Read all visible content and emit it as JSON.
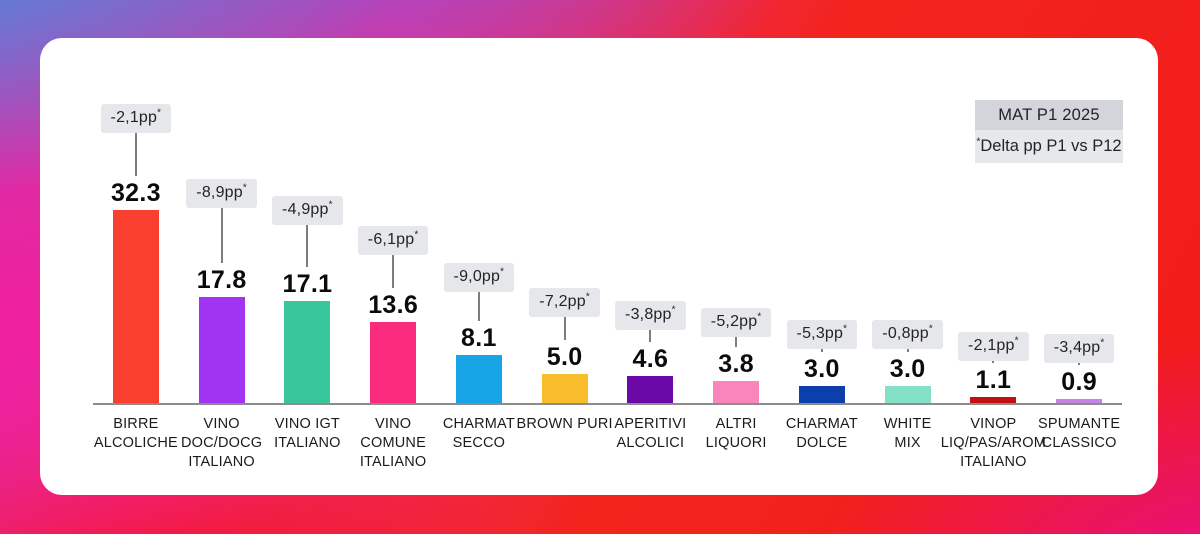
{
  "background": {
    "gradient_colors": [
      "#2f9fe9",
      "#944fd6",
      "#f61a9e",
      "#f31016",
      "#e30d9a",
      "#f2241c"
    ],
    "card_color": "#ffffff"
  },
  "legend": {
    "period_label": "MAT P1 2025",
    "note_asterisk": "*",
    "note_text": "Delta pp P1 vs P12",
    "period_bg": "#d3d5db",
    "note_bg": "#e7e8ec"
  },
  "chart_data": {
    "type": "bar",
    "title": "",
    "xlabel": "",
    "ylabel": "",
    "ylim": [
      0,
      35
    ],
    "grid": false,
    "legend_position": "top-right",
    "asterisk": "*",
    "axis_color": "#8c8c8c",
    "callout_bg": "#e6e7ea",
    "categories": [
      "BIRRE ALCOLICHE",
      "VINO DOC/DOCG ITALIANO",
      "VINO IGT ITALIANO",
      "VINO COMUNE ITALIANO",
      "CHARMAT SECCO",
      "BROWN PURI",
      "APERITIVI ALCOLICI",
      "ALTRI LIQUORI",
      "CHARMAT DOLCE",
      "WHITE MIX",
      "VINOP LIQ/PAS/AROM ITALIANO",
      "SPUMANTE CLASSICO"
    ],
    "values": [
      32.3,
      17.8,
      17.1,
      13.6,
      8.1,
      5.0,
      4.6,
      3.8,
      3.0,
      3.0,
      1.1,
      0.9
    ],
    "items": [
      {
        "label": "BIRRE\nALCOLICHE",
        "value": "32.3",
        "delta": "-2,1pp",
        "color": "#f9402e",
        "line": 43
      },
      {
        "label": "VINO\nDOC/DOCG\nITALIANO",
        "value": "17.8",
        "delta": "-8,9pp",
        "color": "#a134f2",
        "line": 55
      },
      {
        "label": "VINO IGT\nITALIANO",
        "value": "17.1",
        "delta": "-4,9pp",
        "color": "#38c79d",
        "line": 42
      },
      {
        "label": "VINO\nCOMUNE\nITALIANO",
        "value": "13.6",
        "delta": "-6,1pp",
        "color": "#fa2a7d",
        "line": 33
      },
      {
        "label": "CHARMAT\nSECCO",
        "value": "8.1",
        "delta": "-9,0pp",
        "color": "#17a5e8",
        "line": 29
      },
      {
        "label": "BROWN PURI",
        "value": "5.0",
        "delta": "-7,2pp",
        "color": "#fabd2c",
        "line": 23
      },
      {
        "label": "APERITIVI\nALCOLICI",
        "value": "4.6",
        "delta": "-3,8pp",
        "color": "#6a08a8",
        "line": 12
      },
      {
        "label": "ALTRI\nLIQUORI",
        "value": "3.8",
        "delta": "-5,2pp",
        "color": "#fa85ba",
        "line": 10
      },
      {
        "label": "CHARMAT\nDOLCE",
        "value": "3.0",
        "delta": "-5,3pp",
        "color": "#0c3fab",
        "line": 3
      },
      {
        "label": "WHITE\nMIX",
        "value": "3.0",
        "delta": "-0,8pp",
        "color": "#84e0c6",
        "line": 3
      },
      {
        "label": "VINOP\nLIQ/PAS/AROM\nITALIANO",
        "value": "1.1",
        "delta": "-2,1pp",
        "color": "#c01010",
        "line": 2
      },
      {
        "label": "SPUMANTE\nCLASSICO",
        "value": "0.9",
        "delta": "-3,4pp",
        "color": "#c583e6",
        "line": 2
      }
    ]
  }
}
